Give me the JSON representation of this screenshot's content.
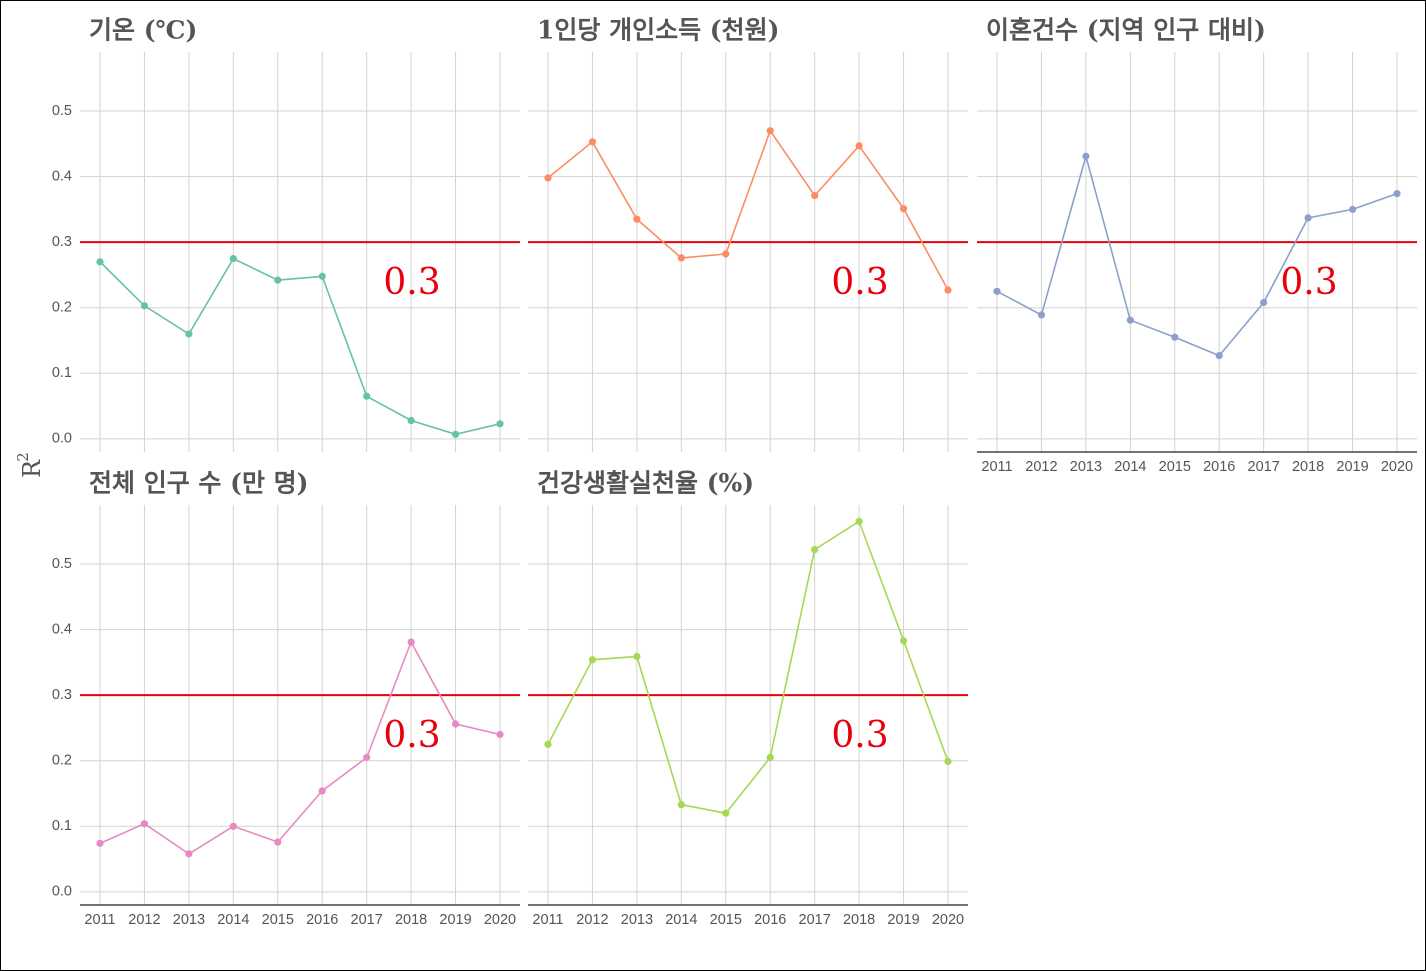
{
  "chart_data": {
    "type": "line",
    "ylabel": "R",
    "ylabel_superscript": "2",
    "ylim": [
      -0.02,
      0.59
    ],
    "y_ticks": [
      0.0,
      0.1,
      0.2,
      0.3,
      0.4,
      0.5
    ],
    "y_tick_labels": [
      "0.0",
      "0.1",
      "0.2",
      "0.3",
      "0.4",
      "0.5"
    ],
    "x": [
      "2011",
      "2012",
      "2013",
      "2014",
      "2015",
      "2016",
      "2017",
      "2018",
      "2019",
      "2020"
    ],
    "reference_line": {
      "value": 0.3,
      "color": "#e8000b",
      "label": "0.3"
    },
    "grid": true,
    "panels": [
      {
        "title": "기온 (℃)",
        "color": "#66c2a5",
        "values": [
          0.27,
          0.203,
          0.16,
          0.275,
          0.242,
          0.248,
          0.065,
          0.028,
          0.007,
          0.023
        ]
      },
      {
        "title": "1인당 개인소득 (천원)",
        "color": "#fc8d62",
        "values": [
          0.398,
          0.453,
          0.335,
          0.276,
          0.282,
          0.47,
          0.371,
          0.447,
          0.351,
          0.227
        ]
      },
      {
        "title": "이혼건수 (지역 인구 대비)",
        "color": "#8da0cb",
        "values": [
          0.225,
          0.189,
          0.431,
          0.181,
          0.155,
          0.127,
          0.208,
          0.337,
          0.35,
          0.374
        ]
      },
      {
        "title": "전체 인구 수 (만 명)",
        "color": "#e78ac3",
        "values": [
          0.074,
          0.104,
          0.058,
          0.1,
          0.076,
          0.154,
          0.205,
          0.381,
          0.256,
          0.24
        ]
      },
      {
        "title": "건강생활실천율 (%)",
        "color": "#a6d854",
        "values": [
          0.225,
          0.354,
          0.359,
          0.133,
          0.12,
          0.205,
          0.522,
          0.565,
          0.383,
          0.199
        ]
      }
    ]
  }
}
